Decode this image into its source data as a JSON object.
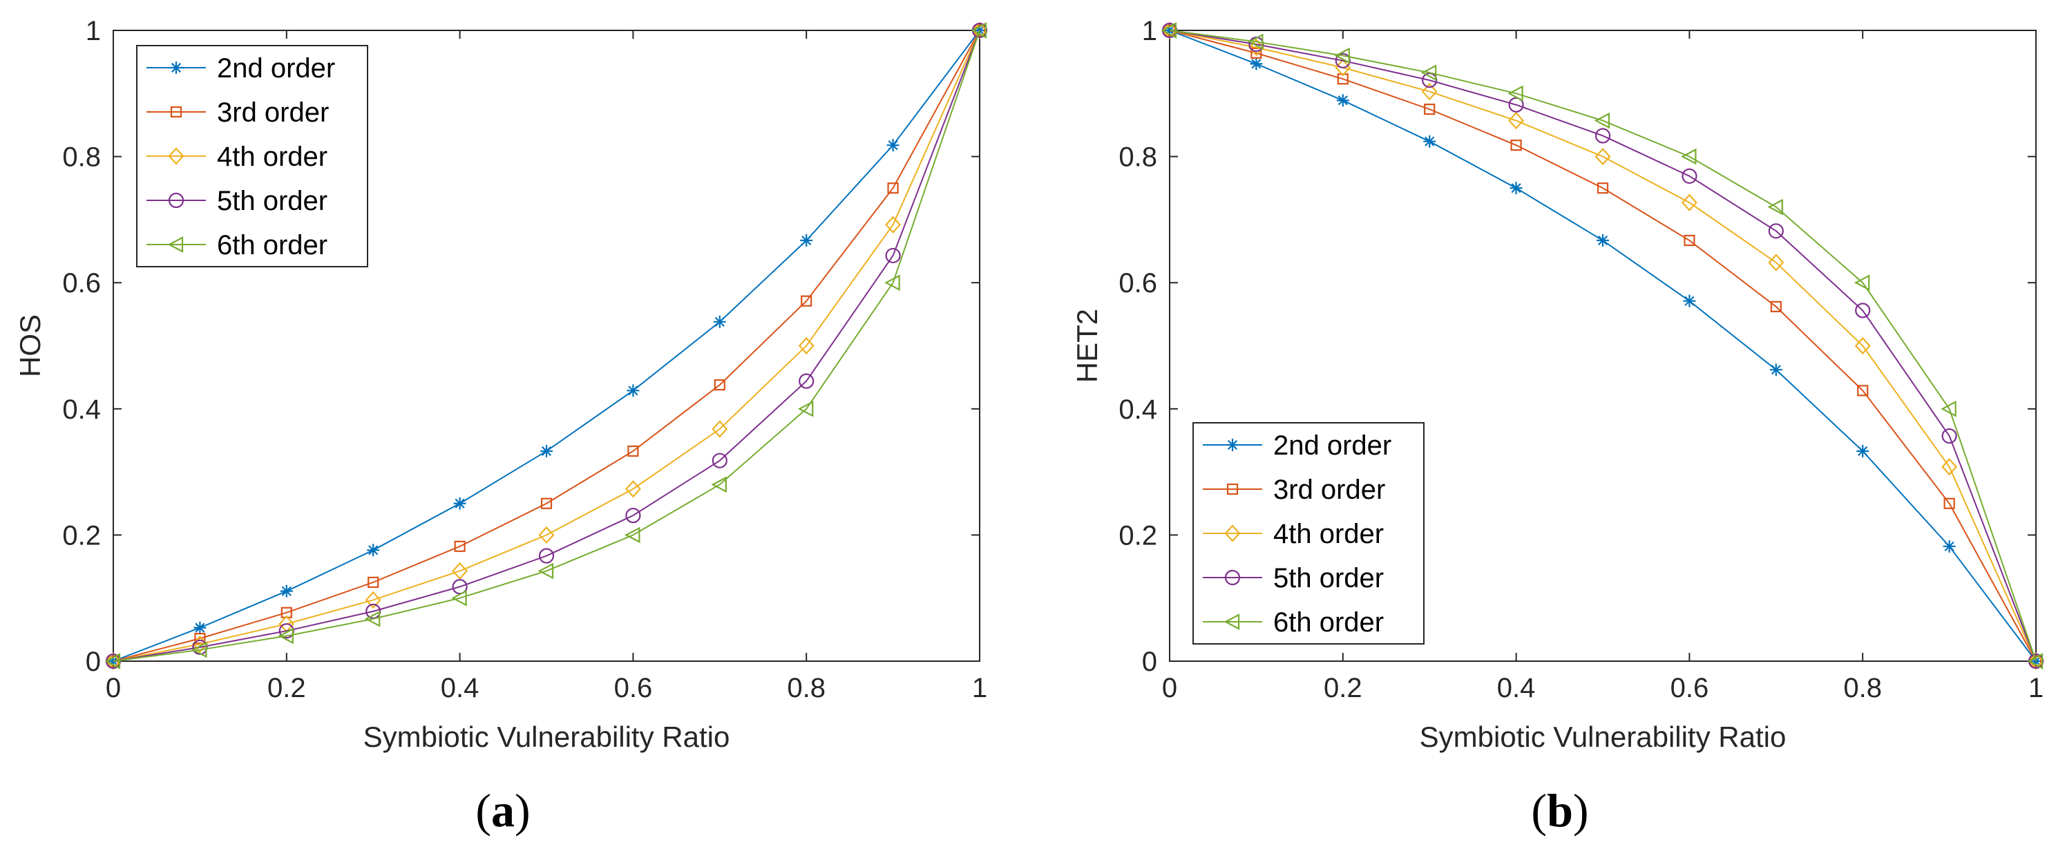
{
  "colors": {
    "2nd order": "#0072BD",
    "3rd order": "#D95319",
    "4th order": "#EDB120",
    "5th order": "#7E2F8E",
    "6th order": "#77AC30"
  },
  "chart_data": [
    {
      "type": "line",
      "panel": "(a)",
      "caption": {
        "open": "(",
        "letter": "a",
        "close": ")"
      },
      "xlabel": "Symbiotic Vulnerability Ratio",
      "ylabel": "HOS",
      "xlim": [
        0,
        1
      ],
      "ylim": [
        0,
        1
      ],
      "xticks": [
        0,
        0.2,
        0.4,
        0.6,
        0.8,
        1
      ],
      "yticks": [
        0,
        0.2,
        0.4,
        0.6,
        0.8,
        1
      ],
      "xtick_labels": [
        "0",
        "0.2",
        "0.4",
        "0.6",
        "0.8",
        "1"
      ],
      "ytick_labels": [
        "0",
        "0.2",
        "0.4",
        "0.6",
        "0.8",
        "1"
      ],
      "legend_position": "top-left",
      "x": [
        0,
        0.1,
        0.2,
        0.3,
        0.4,
        0.5,
        0.6,
        0.7,
        0.8,
        0.9,
        1
      ],
      "series": [
        {
          "name": "2nd order",
          "marker": "asterisk",
          "values": [
            0,
            0.053,
            0.111,
            0.176,
            0.25,
            0.333,
            0.429,
            0.538,
            0.667,
            0.818,
            1
          ]
        },
        {
          "name": "3rd order",
          "marker": "square",
          "values": [
            0,
            0.036,
            0.077,
            0.125,
            0.182,
            0.25,
            0.333,
            0.438,
            0.571,
            0.75,
            1
          ]
        },
        {
          "name": "4th order",
          "marker": "diamond",
          "values": [
            0,
            0.027,
            0.059,
            0.097,
            0.143,
            0.2,
            0.273,
            0.368,
            0.5,
            0.692,
            1
          ]
        },
        {
          "name": "5th order",
          "marker": "circle",
          "values": [
            0,
            0.022,
            0.048,
            0.079,
            0.118,
            0.167,
            0.231,
            0.318,
            0.444,
            0.643,
            1
          ]
        },
        {
          "name": "6th order",
          "marker": "triangle-left",
          "values": [
            0,
            0.018,
            0.04,
            0.067,
            0.1,
            0.143,
            0.2,
            0.28,
            0.4,
            0.6,
            1
          ]
        }
      ]
    },
    {
      "type": "line",
      "panel": "(b)",
      "caption": {
        "open": "(",
        "letter": "b",
        "close": ")"
      },
      "xlabel": "Symbiotic Vulnerability Ratio",
      "ylabel": "HET2",
      "xlim": [
        0,
        1
      ],
      "ylim": [
        0,
        1
      ],
      "xticks": [
        0,
        0.2,
        0.4,
        0.6,
        0.8,
        1
      ],
      "yticks": [
        0,
        0.2,
        0.4,
        0.6,
        0.8,
        1
      ],
      "xtick_labels": [
        "0",
        "0.2",
        "0.4",
        "0.6",
        "0.8",
        "1"
      ],
      "ytick_labels": [
        "0",
        "0.2",
        "0.4",
        "0.6",
        "0.8",
        "1"
      ],
      "legend_position": "bottom-left",
      "x": [
        0,
        0.1,
        0.2,
        0.3,
        0.4,
        0.5,
        0.6,
        0.7,
        0.8,
        0.9,
        1
      ],
      "series": [
        {
          "name": "2nd order",
          "marker": "asterisk",
          "values": [
            1,
            0.947,
            0.889,
            0.824,
            0.75,
            0.667,
            0.571,
            0.462,
            0.333,
            0.182,
            0
          ]
        },
        {
          "name": "3rd order",
          "marker": "square",
          "values": [
            1,
            0.964,
            0.923,
            0.875,
            0.818,
            0.75,
            0.667,
            0.562,
            0.429,
            0.25,
            0
          ]
        },
        {
          "name": "4th order",
          "marker": "diamond",
          "values": [
            1,
            0.973,
            0.941,
            0.903,
            0.857,
            0.8,
            0.727,
            0.632,
            0.5,
            0.308,
            0
          ]
        },
        {
          "name": "5th order",
          "marker": "circle",
          "values": [
            1,
            0.978,
            0.952,
            0.921,
            0.882,
            0.833,
            0.769,
            0.682,
            0.556,
            0.357,
            0
          ]
        },
        {
          "name": "6th order",
          "marker": "triangle-left",
          "values": [
            1,
            0.982,
            0.96,
            0.933,
            0.9,
            0.857,
            0.8,
            0.72,
            0.6,
            0.4,
            0
          ]
        }
      ]
    }
  ]
}
